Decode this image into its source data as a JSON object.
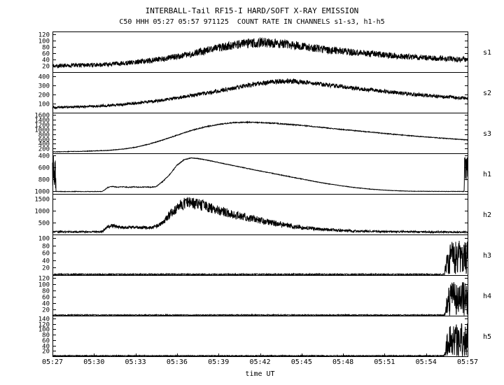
{
  "header": {
    "title": "INTERBALL-Tail RF15-I HARD/SOFT X-RAY EMISSION",
    "subtitle": "C50 HHH 05:27 05:57 971125  COUNT RATE IN CHANNELS s1-s3, h1-h5"
  },
  "colors": {
    "foreground": "#000000",
    "background": "#ffffff"
  },
  "x_axis": {
    "label": "time UT",
    "tick_labels": [
      "05:27",
      "05:30",
      "05:33",
      "05:36",
      "05:39",
      "05:42",
      "05:45",
      "05:48",
      "05:51",
      "05:54",
      "05:57"
    ]
  },
  "channel_labels": [
    "s1",
    "s2",
    "s3",
    "h1",
    "h2",
    "h3",
    "h4",
    "h5"
  ],
  "chart_data": {
    "type": "line",
    "title": "INTERBALL-Tail RF15-I HARD/SOFT X-RAY EMISSION",
    "subtitle": "C50 HHH 05:27 05:57 971125  COUNT RATE IN CHANNELS s1-s3, h1-h5",
    "xlabel": "time UT",
    "x_unit_note": "x values are minutes after 05:27 UT; y values are count rate; noise_amplitude is the peak-to-peak scatter of the trace",
    "x_range_minutes": [
      0,
      30
    ],
    "panels": [
      {
        "name": "s1",
        "ylim": [
          0,
          130
        ],
        "yticks": [
          20,
          40,
          60,
          80,
          100,
          120
        ],
        "inverted": false,
        "x": [
          0,
          1,
          2,
          3,
          4,
          5,
          6,
          7,
          8,
          9,
          10,
          11,
          12,
          13,
          14,
          15,
          16,
          17,
          18,
          20,
          22,
          24,
          26,
          28,
          30
        ],
        "y": [
          20,
          21,
          22,
          23,
          25,
          28,
          32,
          37,
          42,
          50,
          58,
          68,
          78,
          86,
          91,
          95,
          92,
          88,
          82,
          70,
          62,
          55,
          48,
          44,
          40
        ],
        "noise_amplitude": [
          13,
          13,
          13,
          14,
          14,
          15,
          16,
          17,
          18,
          20,
          22,
          24,
          26,
          28,
          30,
          32,
          30,
          28,
          26,
          24,
          22,
          20,
          18,
          17,
          16
        ]
      },
      {
        "name": "s2",
        "ylim": [
          0,
          450
        ],
        "yticks": [
          100,
          200,
          300,
          400
        ],
        "inverted": false,
        "x": [
          0,
          1,
          2,
          3,
          4,
          5,
          6,
          7,
          8,
          9,
          10,
          11,
          12,
          13,
          14,
          15,
          16,
          17,
          18,
          19,
          20,
          22,
          24,
          26,
          28,
          30
        ],
        "y": [
          60,
          62,
          66,
          72,
          80,
          92,
          105,
          122,
          140,
          165,
          190,
          215,
          240,
          270,
          300,
          325,
          345,
          350,
          342,
          325,
          305,
          270,
          235,
          205,
          180,
          160
        ],
        "noise_amplitude": [
          25,
          25,
          26,
          27,
          28,
          29,
          30,
          32,
          35,
          38,
          40,
          42,
          45,
          48,
          50,
          52,
          55,
          55,
          52,
          50,
          48,
          45,
          42,
          40,
          38,
          35
        ]
      },
      {
        "name": "s3",
        "ylim": [
          0,
          1700
        ],
        "yticks": [
          200,
          400,
          600,
          800,
          1000,
          1200,
          1400,
          1600
        ],
        "inverted": false,
        "x": [
          0,
          2,
          4,
          5,
          6,
          7,
          8,
          9,
          10,
          11,
          12,
          13,
          14,
          15,
          16,
          18,
          20,
          22,
          24,
          26,
          28,
          30
        ],
        "y": [
          60,
          80,
          120,
          170,
          250,
          390,
          560,
          760,
          950,
          1100,
          1210,
          1280,
          1300,
          1290,
          1260,
          1170,
          1050,
          940,
          830,
          730,
          640,
          560
        ],
        "noise_amplitude": [
          20,
          20,
          22,
          24,
          26,
          28,
          30,
          32,
          34,
          36,
          38,
          40,
          40,
          40,
          38,
          36,
          34,
          32,
          30,
          28,
          26,
          25
        ]
      },
      {
        "name": "h1",
        "ylim": [
          360,
          1045
        ],
        "yticks": [
          400,
          600,
          800,
          1000
        ],
        "inverted": true,
        "note": "y axis increases downward; saturated full-height bars at left and right plot edges",
        "x": [
          0,
          0.25,
          0.25,
          3.6,
          4.0,
          4.3,
          4.7,
          5.1,
          5.5,
          5.9,
          6.3,
          6.7,
          7.1,
          7.5,
          8.0,
          8.5,
          9.0,
          9.5,
          10.0,
          10.5,
          11,
          12,
          13,
          14,
          15,
          16,
          17,
          18,
          19,
          20,
          21,
          22,
          23,
          24,
          25,
          26,
          28,
          29.75,
          29.75,
          30
        ],
        "y": [
          710,
          710,
          1005,
          1005,
          935,
          920,
          932,
          925,
          934,
          926,
          933,
          927,
          932,
          920,
          830,
          710,
          560,
          470,
          438,
          448,
          468,
          515,
          565,
          612,
          658,
          703,
          748,
          793,
          838,
          878,
          912,
          942,
          965,
          982,
          993,
          1000,
          1003,
          1003,
          710,
          710
        ],
        "noise_amplitude": [
          620,
          620,
          8,
          8,
          12,
          12,
          12,
          12,
          12,
          12,
          12,
          12,
          12,
          14,
          14,
          14,
          14,
          12,
          10,
          10,
          10,
          10,
          10,
          10,
          10,
          10,
          10,
          10,
          8,
          8,
          8,
          8,
          8,
          6,
          6,
          6,
          6,
          6,
          620,
          620
        ]
      },
      {
        "name": "h2",
        "ylim": [
          0,
          1700
        ],
        "yticks": [
          500,
          1000,
          1500
        ],
        "inverted": false,
        "x": [
          0,
          1,
          2,
          3,
          3.6,
          4.0,
          4.4,
          4.8,
          5.2,
          5.6,
          6.0,
          6.5,
          7.0,
          7.4,
          7.8,
          8.2,
          8.6,
          9.0,
          9.4,
          9.8,
          10.2,
          10.6,
          11,
          12,
          13,
          14,
          15,
          16,
          17,
          18,
          19,
          20,
          21,
          22,
          24,
          26,
          28,
          30
        ],
        "y": [
          110,
          110,
          115,
          115,
          120,
          330,
          370,
          300,
          280,
          300,
          285,
          300,
          290,
          330,
          420,
          650,
          900,
          1120,
          1270,
          1330,
          1310,
          1260,
          1190,
          1010,
          860,
          720,
          580,
          470,
          380,
          300,
          240,
          195,
          165,
          140,
          120,
          110,
          105,
          100
        ],
        "noise_amplitude": [
          70,
          70,
          70,
          70,
          80,
          140,
          140,
          120,
          120,
          120,
          120,
          120,
          120,
          140,
          180,
          300,
          380,
          450,
          480,
          500,
          490,
          470,
          450,
          400,
          370,
          330,
          300,
          260,
          220,
          180,
          150,
          130,
          110,
          95,
          80,
          70,
          70,
          70
        ]
      },
      {
        "name": "h3",
        "ylim": [
          0,
          110
        ],
        "yticks": [
          20,
          40,
          60,
          80,
          100
        ],
        "inverted": false,
        "x": [
          0,
          28.3,
          28.5,
          28.8,
          29.2,
          30
        ],
        "y": [
          2,
          2,
          30,
          50,
          50,
          48
        ],
        "noise_amplitude": [
          3,
          3,
          60,
          95,
          95,
          95
        ]
      },
      {
        "name": "h4",
        "ylim": [
          0,
          130
        ],
        "yticks": [
          20,
          40,
          60,
          80,
          100,
          120
        ],
        "inverted": false,
        "x": [
          0,
          28.3,
          28.5,
          28.8,
          29.2,
          30
        ],
        "y": [
          2,
          2,
          35,
          55,
          55,
          53
        ],
        "noise_amplitude": [
          3,
          3,
          70,
          110,
          110,
          110
        ]
      },
      {
        "name": "h5",
        "ylim": [
          0,
          150
        ],
        "yticks": [
          20,
          40,
          60,
          80,
          100,
          120,
          140
        ],
        "inverted": false,
        "x": [
          0,
          28.3,
          28.5,
          28.8,
          29.2,
          30
        ],
        "y": [
          2,
          2,
          40,
          62,
          62,
          60
        ],
        "noise_amplitude": [
          3,
          3,
          80,
          130,
          130,
          130
        ]
      }
    ]
  }
}
